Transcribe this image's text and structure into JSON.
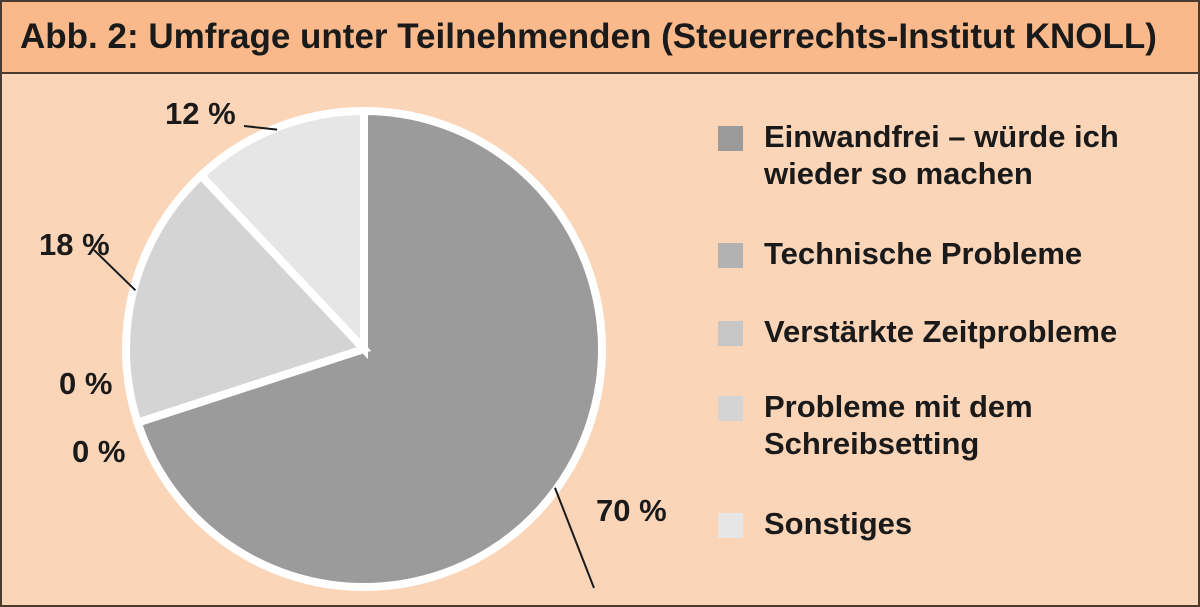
{
  "title": "Abb. 2: Umfrage unter Teilnehmenden (Steuerrechts-Institut KNOLL)",
  "chart_data": {
    "type": "pie",
    "title": "Abb. 2: Umfrage unter Teilnehmenden (Steuerrechts-Institut KNOLL)",
    "categories": [
      "Einwandfrei – würde ich wieder so machen",
      "Technische Probleme",
      "Verstärkte Zeitprobleme",
      "Probleme mit dem Schreibsetting",
      "Sonstiges"
    ],
    "values": [
      70,
      0,
      0,
      18,
      12
    ],
    "value_labels": [
      "70 %",
      "0 %",
      "0 %",
      "18 %",
      "12 %"
    ],
    "colors": [
      "#9b9b9b",
      "#b2b2b2",
      "#c6c6c6",
      "#d4d4d4",
      "#e6e6e6"
    ],
    "legend": {
      "position": "right",
      "items": [
        {
          "label": "Einwandfrei – würde ich",
          "label2": "wieder so machen",
          "color": "#9b9b9b"
        },
        {
          "label": "Technische Probleme",
          "color": "#b2b2b2"
        },
        {
          "label": "Verstärkte Zeitprobleme",
          "color": "#c6c6c6"
        },
        {
          "label": "Probleme mit dem",
          "label2": "Schreibsetting",
          "color": "#d4d4d4"
        },
        {
          "label": "Sonstiges",
          "color": "#e6e6e6"
        }
      ]
    }
  }
}
